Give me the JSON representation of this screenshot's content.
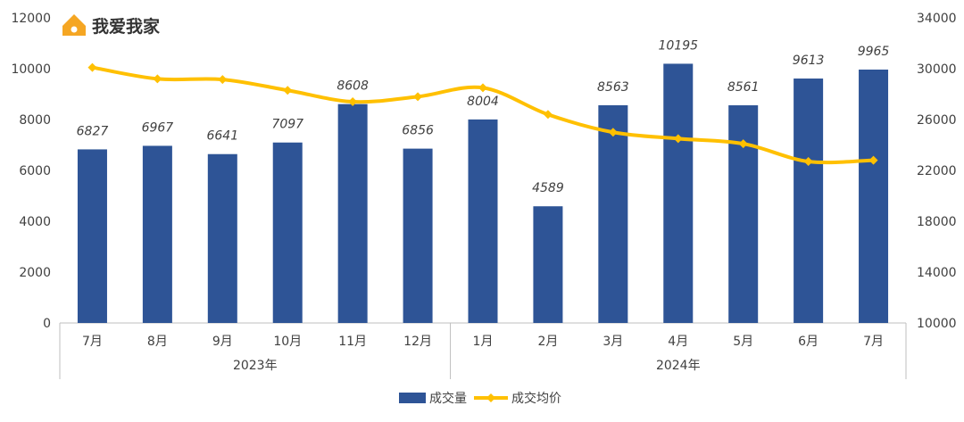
{
  "brand": {
    "name": "我爱我家",
    "logo_color": "#f5a623"
  },
  "chart_data": {
    "type": "bar+line",
    "categories": [
      "7月",
      "8月",
      "9月",
      "10月",
      "11月",
      "12月",
      "1月",
      "2月",
      "3月",
      "4月",
      "5月",
      "6月",
      "7月"
    ],
    "groups": [
      {
        "label": "2023年",
        "span": 6
      },
      {
        "label": "2024年",
        "span": 7
      }
    ],
    "series": [
      {
        "name": "成交量",
        "type": "bar",
        "axis": "left",
        "color": "#2e5496",
        "values": [
          6827,
          6967,
          6641,
          7097,
          8608,
          6856,
          8004,
          4589,
          8563,
          10195,
          8561,
          9613,
          9965
        ],
        "data_labels": [
          "6827",
          "6967",
          "6641",
          "7097",
          "8608",
          "6856",
          "8004",
          "4589",
          "8563",
          "10195",
          "8561",
          "9613",
          "9965"
        ]
      },
      {
        "name": "成交均价",
        "type": "line",
        "axis": "right",
        "color": "#ffc000",
        "values": [
          30100,
          29200,
          29150,
          28300,
          27400,
          27800,
          28500,
          26400,
          25000,
          24500,
          24100,
          22700,
          22800
        ]
      }
    ],
    "y_left": {
      "ylim": [
        0,
        12000
      ],
      "ticks": [
        0,
        2000,
        4000,
        6000,
        8000,
        10000,
        12000
      ],
      "tick_labels": [
        "0",
        "2000",
        "4000",
        "6000",
        "8000",
        "10000",
        "12000"
      ]
    },
    "y_right": {
      "ylim": [
        10000,
        34000
      ],
      "ticks": [
        10000,
        14000,
        18000,
        22000,
        26000,
        30000,
        34000
      ],
      "tick_labels": [
        "10000",
        "14000",
        "18000",
        "22000",
        "26000",
        "30000",
        "34000"
      ]
    },
    "legend": {
      "placement": "bottom-center"
    },
    "grid": false
  }
}
